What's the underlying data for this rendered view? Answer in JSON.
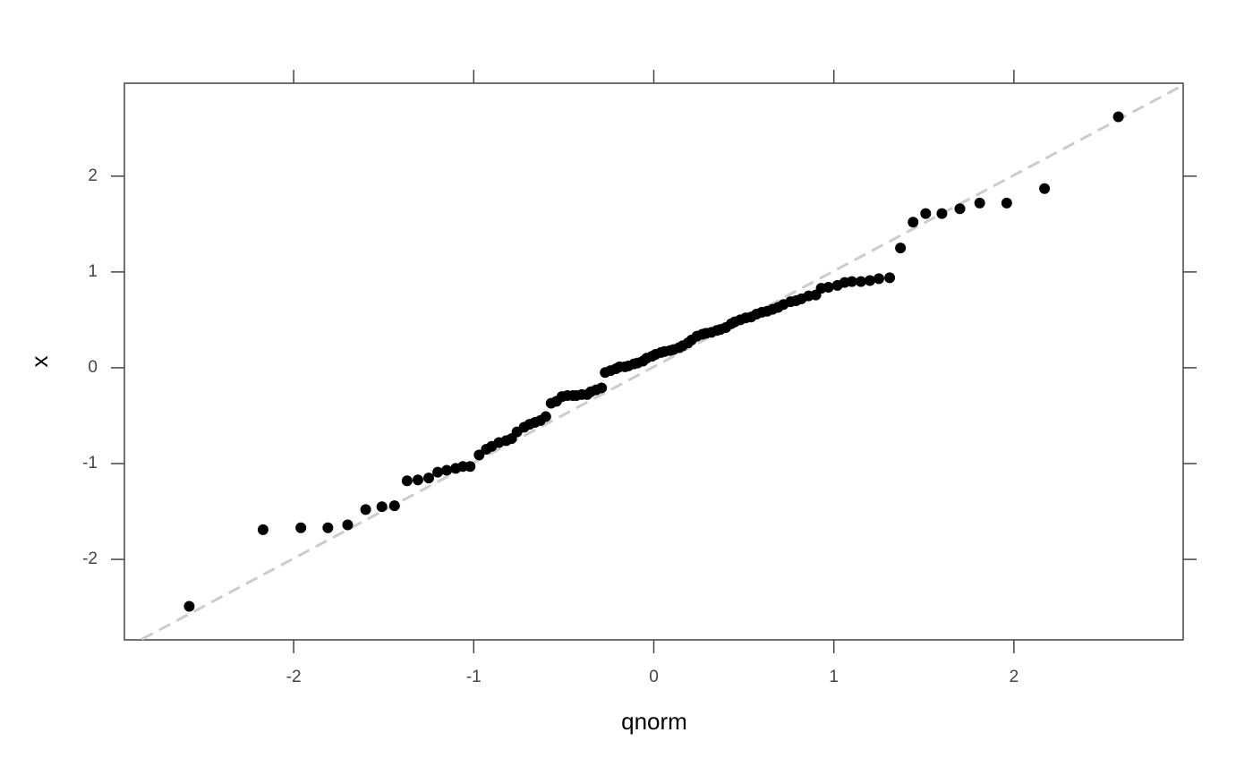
{
  "chart_data": {
    "type": "scatter",
    "x_label": "qnorm",
    "y_label": "x",
    "xlim": [
      -2.94,
      2.94
    ],
    "ylim": [
      -2.84,
      2.97
    ],
    "xticks": [
      -2,
      -1,
      0,
      1,
      2
    ],
    "yticks": [
      -2,
      -1,
      0,
      1,
      2
    ],
    "grid": false,
    "color": "#000000",
    "reference_line": {
      "slope": 1.0,
      "intercept": 0.01,
      "color": "#cccccc"
    },
    "x": [
      -2.58,
      -2.17,
      -1.96,
      -1.81,
      -1.7,
      -1.6,
      -1.51,
      -1.44,
      -1.37,
      -1.31,
      -1.25,
      -1.2,
      -1.15,
      -1.1,
      -1.06,
      -1.02,
      -0.97,
      -0.93,
      -0.9,
      -0.86,
      -0.82,
      -0.79,
      -0.76,
      -0.72,
      -0.69,
      -0.66,
      -0.63,
      -0.6,
      -0.57,
      -0.54,
      -0.51,
      -0.48,
      -0.45,
      -0.43,
      -0.4,
      -0.37,
      -0.35,
      -0.32,
      -0.29,
      -0.27,
      -0.24,
      -0.21,
      -0.19,
      -0.16,
      -0.14,
      -0.11,
      -0.09,
      -0.06,
      -0.04,
      -0.01,
      0.01,
      0.04,
      0.06,
      0.09,
      0.11,
      0.14,
      0.16,
      0.19,
      0.21,
      0.24,
      0.27,
      0.29,
      0.32,
      0.35,
      0.37,
      0.4,
      0.43,
      0.45,
      0.48,
      0.51,
      0.54,
      0.57,
      0.6,
      0.63,
      0.66,
      0.69,
      0.72,
      0.76,
      0.79,
      0.82,
      0.86,
      0.9,
      0.93,
      0.97,
      1.02,
      1.06,
      1.1,
      1.15,
      1.2,
      1.25,
      1.31,
      1.37,
      1.44,
      1.51,
      1.6,
      1.7,
      1.81,
      1.96,
      2.17,
      2.58
    ],
    "values": [
      -2.49,
      -1.69,
      -1.67,
      -1.67,
      -1.64,
      -1.48,
      -1.45,
      -1.44,
      -1.18,
      -1.17,
      -1.15,
      -1.09,
      -1.07,
      -1.05,
      -1.03,
      -1.03,
      -0.91,
      -0.85,
      -0.82,
      -0.78,
      -0.76,
      -0.74,
      -0.67,
      -0.62,
      -0.59,
      -0.57,
      -0.55,
      -0.51,
      -0.37,
      -0.35,
      -0.3,
      -0.29,
      -0.29,
      -0.29,
      -0.28,
      -0.28,
      -0.25,
      -0.23,
      -0.21,
      -0.05,
      -0.03,
      -0.01,
      0.01,
      0.01,
      0.02,
      0.04,
      0.05,
      0.07,
      0.1,
      0.12,
      0.14,
      0.16,
      0.17,
      0.18,
      0.19,
      0.21,
      0.23,
      0.26,
      0.29,
      0.33,
      0.35,
      0.36,
      0.37,
      0.39,
      0.4,
      0.42,
      0.46,
      0.48,
      0.5,
      0.52,
      0.53,
      0.56,
      0.58,
      0.59,
      0.61,
      0.63,
      0.66,
      0.69,
      0.7,
      0.72,
      0.75,
      0.76,
      0.83,
      0.84,
      0.86,
      0.89,
      0.9,
      0.9,
      0.91,
      0.93,
      0.94,
      1.25,
      1.52,
      1.61,
      1.61,
      1.66,
      1.72,
      1.72,
      1.87,
      2.62
    ]
  }
}
